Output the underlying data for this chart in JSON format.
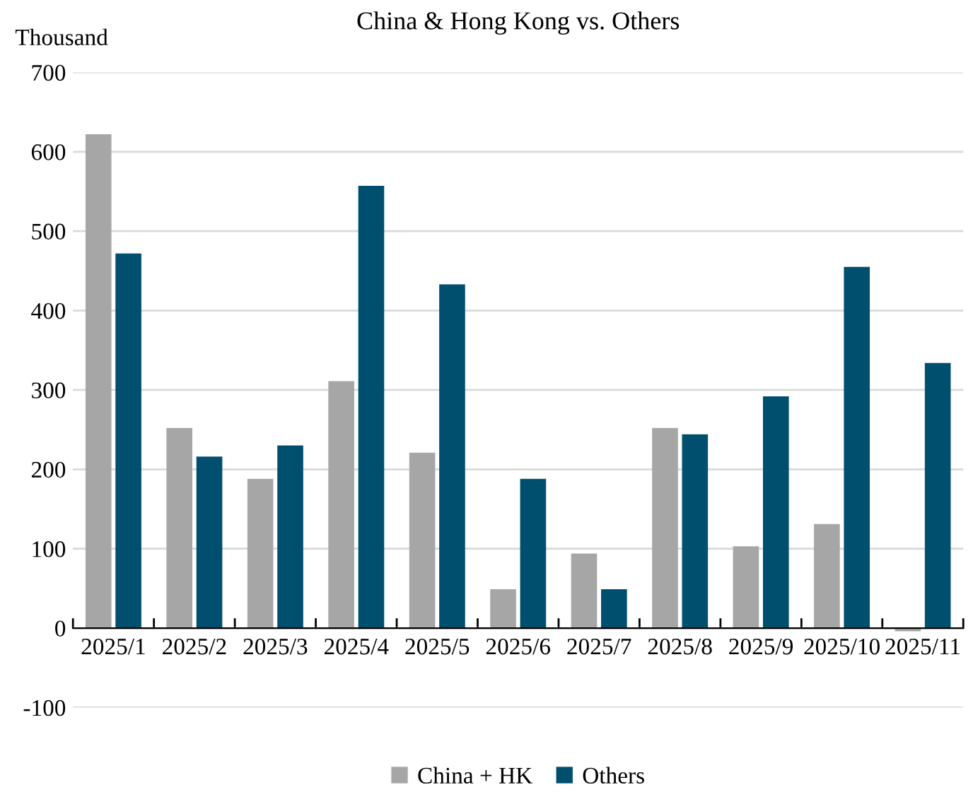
{
  "chart_data": {
    "type": "bar",
    "title": "China & Hong Kong vs. Others",
    "ylabel": "Thousand",
    "categories": [
      "2025/1",
      "2025/2",
      "2025/3",
      "2025/4",
      "2025/5",
      "2025/6",
      "2025/7",
      "2025/8",
      "2025/9",
      "2025/10",
      "2025/11"
    ],
    "series": [
      {
        "name": "China + HK",
        "color": "#a6a6a6",
        "values": [
          622,
          252,
          188,
          311,
          221,
          49,
          94,
          252,
          103,
          131,
          -4
        ]
      },
      {
        "name": "Others",
        "color": "#004f6e",
        "values": [
          472,
          216,
          230,
          557,
          433,
          188,
          49,
          244,
          292,
          455,
          334
        ]
      }
    ],
    "ylim": [
      -100,
      700
    ],
    "yticks": [
      -100,
      0,
      100,
      200,
      300,
      400,
      500,
      600,
      700
    ],
    "grid": "y",
    "legend": "bottom"
  }
}
